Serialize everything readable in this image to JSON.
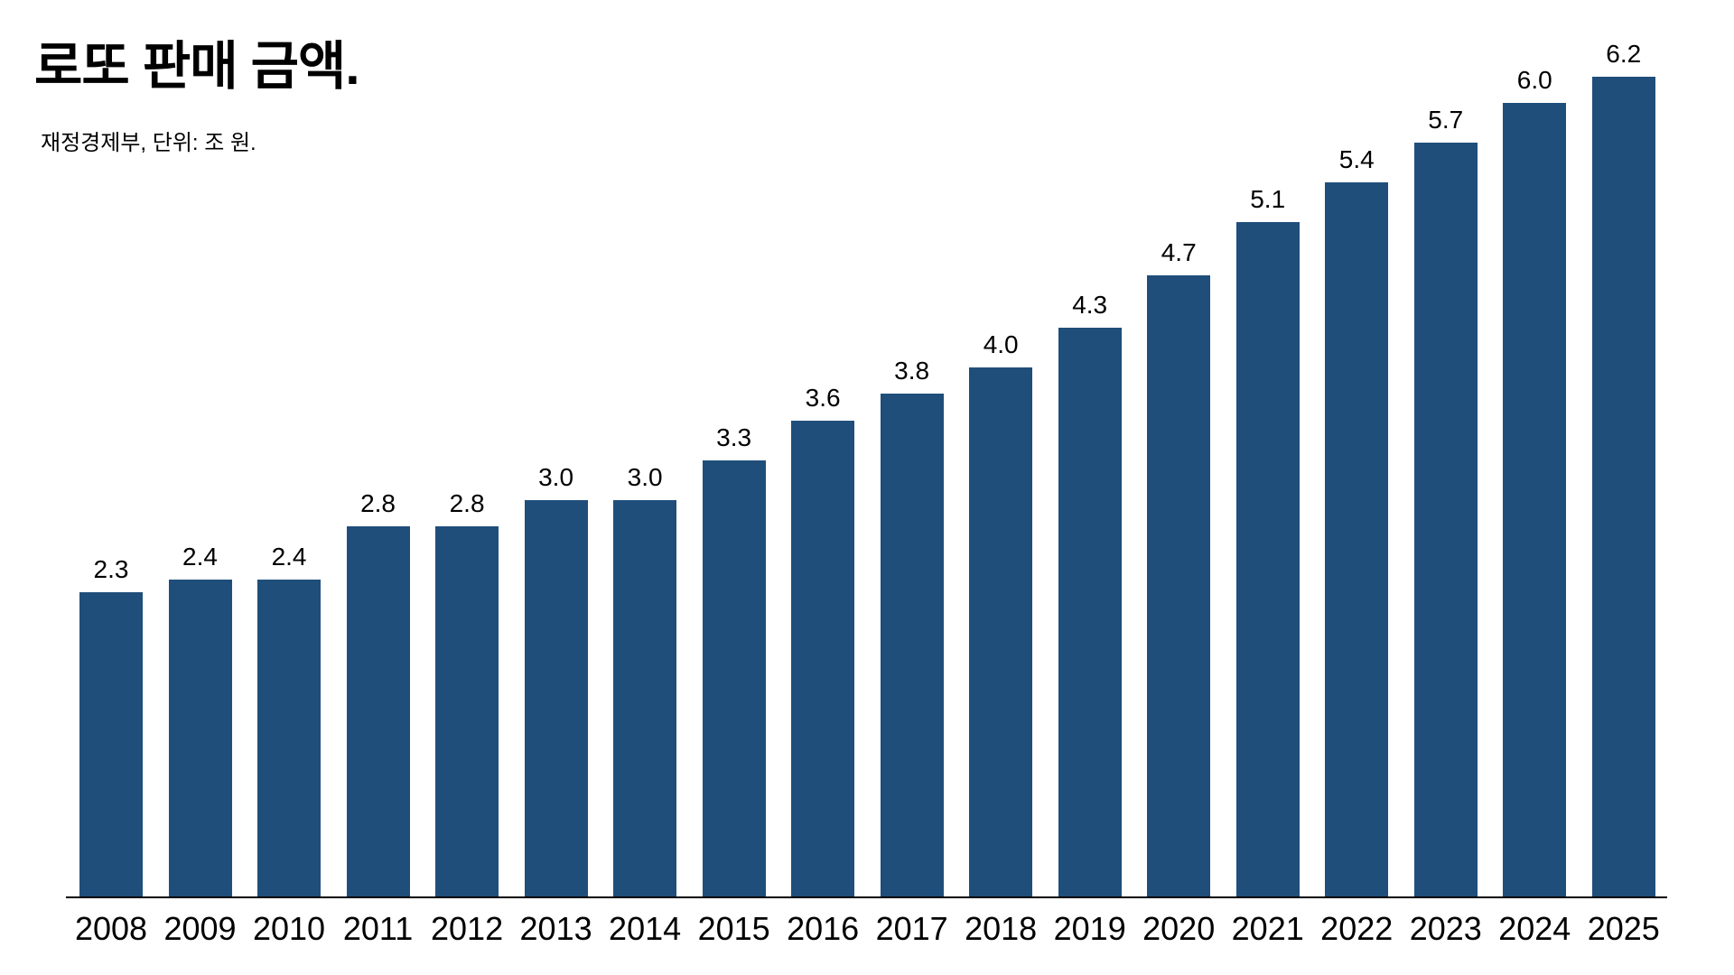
{
  "chart": {
    "title": "로또 판매 금액.",
    "subtitle": "재정경제부, 단위: 조 원.",
    "bar_color": "#1F4E7B",
    "axis_color": "#000000"
  },
  "chart_data": {
    "type": "bar",
    "title": "로또 판매 금액.",
    "subtitle": "재정경제부, 단위: 조 원.",
    "source": "재정경제부",
    "unit": "조 원",
    "categories": [
      "2008",
      "2009",
      "2010",
      "2011",
      "2012",
      "2013",
      "2014",
      "2015",
      "2016",
      "2017",
      "2018",
      "2019",
      "2020",
      "2021",
      "2022",
      "2023",
      "2024",
      "2025"
    ],
    "values": [
      2.3,
      2.4,
      2.4,
      2.8,
      2.8,
      3.0,
      3.0,
      3.3,
      3.6,
      3.8,
      4.0,
      4.3,
      4.7,
      5.1,
      5.4,
      5.7,
      6.0,
      6.2
    ],
    "value_labels": [
      "2.3",
      "2.4",
      "2.4",
      "2.8",
      "2.8",
      "3.0",
      "3.0",
      "3.3",
      "3.6",
      "3.8",
      "4.0",
      "4.3",
      "4.7",
      "5.1",
      "5.4",
      "5.7",
      "6.0",
      "6.2"
    ],
    "xlabel": "",
    "ylabel": "",
    "ylim": [
      0,
      6.2
    ],
    "grid": false,
    "legend": false,
    "value_labels_shown": true
  }
}
